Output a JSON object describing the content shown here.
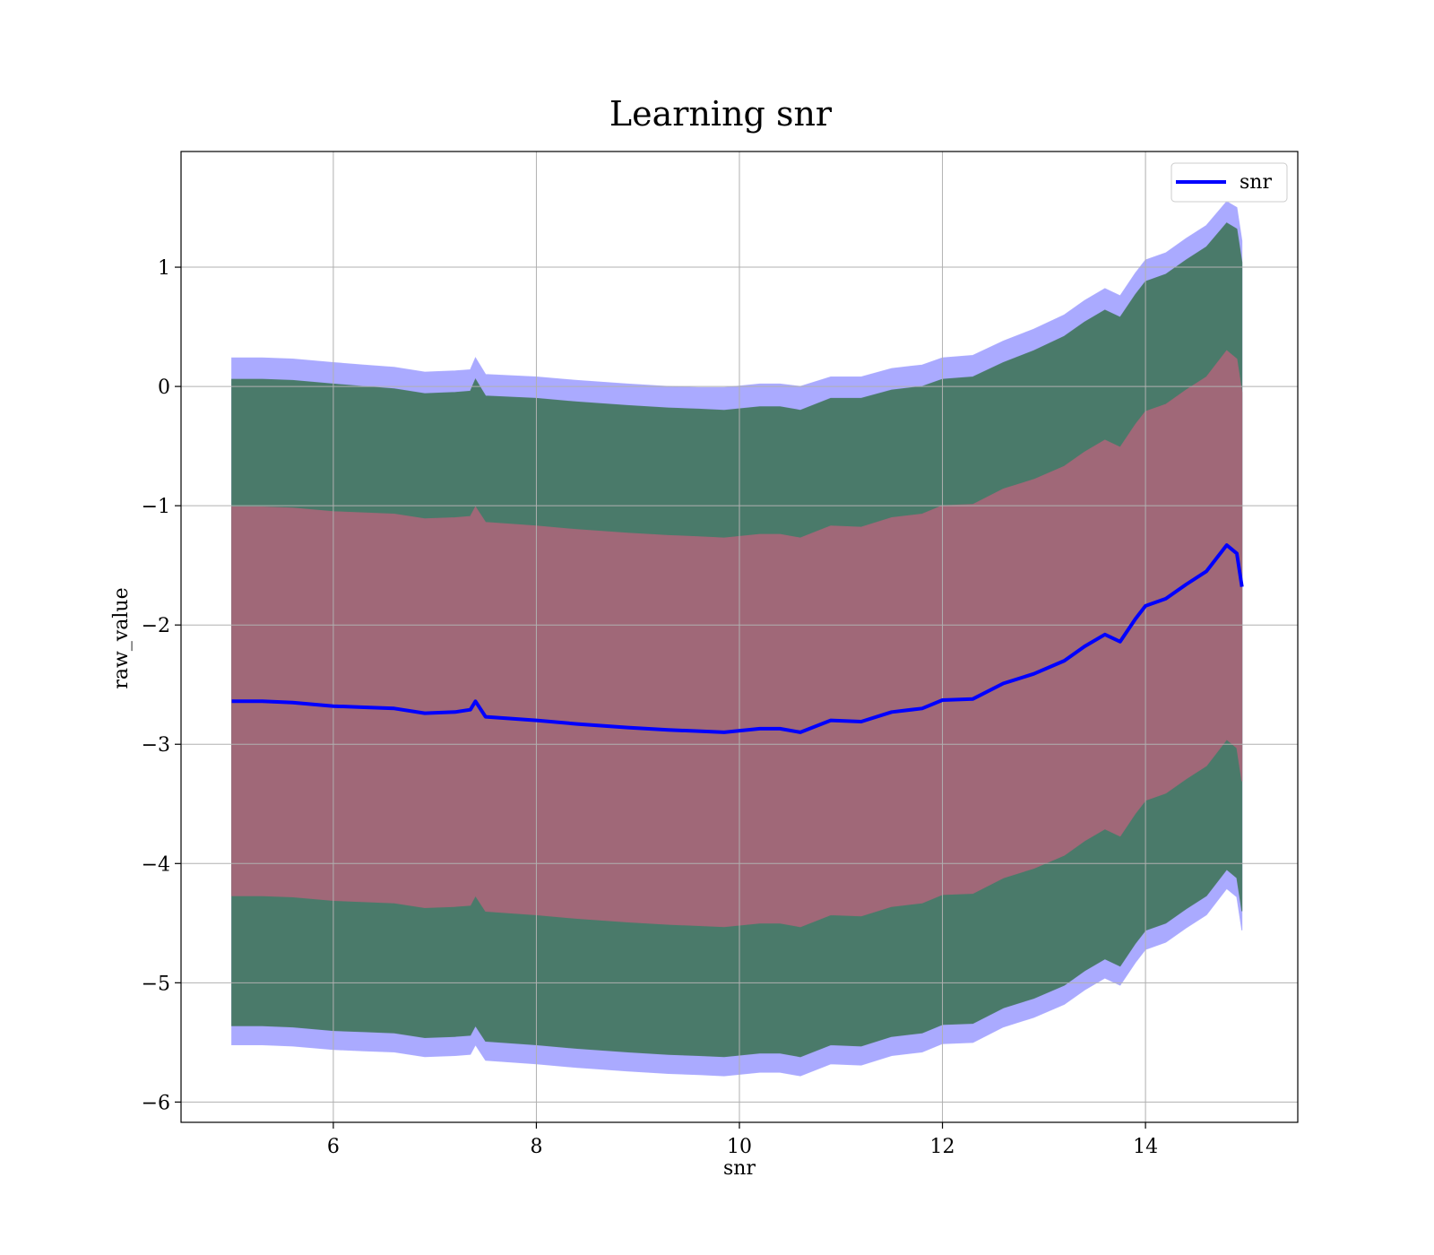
{
  "chart_data": {
    "type": "line",
    "title": "Learning snr",
    "xlabel": "snr",
    "ylabel": "raw_value",
    "xlim": [
      4.5,
      15.5
    ],
    "ylim": [
      -6.17,
      1.97
    ],
    "xticks": [
      6,
      8,
      10,
      12,
      14
    ],
    "yticks": [
      -6,
      -5,
      -4,
      -3,
      -2,
      -1,
      0,
      1
    ],
    "xtick_labels": [
      "6",
      "8",
      "10",
      "12",
      "14"
    ],
    "ytick_labels": [
      "−6",
      "−5",
      "−4",
      "−3",
      "−2",
      "−1",
      "0",
      "1"
    ],
    "grid": true,
    "legend_position": "upper right",
    "series": [
      {
        "name": "snr",
        "color": "#0000ff",
        "x": [
          5.0,
          5.3,
          5.6,
          6.0,
          6.3,
          6.6,
          6.9,
          7.2,
          7.35,
          7.4,
          7.5,
          8.0,
          8.4,
          8.9,
          9.3,
          9.6,
          9.85,
          10.2,
          10.4,
          10.6,
          10.9,
          11.2,
          11.5,
          11.8,
          12.0,
          12.3,
          12.6,
          12.9,
          13.2,
          13.4,
          13.6,
          13.75,
          13.9,
          14.0,
          14.2,
          14.4,
          14.6,
          14.8,
          14.9,
          14.95
        ],
        "y": [
          -2.64,
          -2.64,
          -2.65,
          -2.68,
          -2.69,
          -2.7,
          -2.74,
          -2.73,
          -2.71,
          -2.64,
          -2.77,
          -2.8,
          -2.83,
          -2.86,
          -2.88,
          -2.89,
          -2.9,
          -2.87,
          -2.87,
          -2.9,
          -2.8,
          -2.81,
          -2.73,
          -2.7,
          -2.63,
          -2.62,
          -2.49,
          -2.41,
          -2.3,
          -2.18,
          -2.08,
          -2.14,
          -1.95,
          -1.84,
          -1.78,
          -1.66,
          -1.55,
          -1.33,
          -1.4,
          -1.68
        ]
      }
    ],
    "bands": [
      {
        "color": "#aaaaff",
        "x": [
          5.0,
          5.3,
          5.6,
          6.0,
          6.3,
          6.6,
          6.9,
          7.2,
          7.35,
          7.4,
          7.5,
          8.0,
          8.4,
          8.9,
          9.3,
          9.6,
          9.85,
          10.2,
          10.4,
          10.6,
          10.9,
          11.2,
          11.5,
          11.8,
          12.0,
          12.3,
          12.6,
          12.9,
          13.2,
          13.4,
          13.6,
          13.75,
          13.9,
          14.0,
          14.2,
          14.4,
          14.6,
          14.8,
          14.9,
          14.95
        ],
        "upper": [
          0.24,
          0.24,
          0.23,
          0.2,
          0.18,
          0.16,
          0.12,
          0.13,
          0.14,
          0.24,
          0.1,
          0.08,
          0.05,
          0.02,
          0.0,
          -0.01,
          -0.01,
          0.02,
          0.02,
          0.0,
          0.08,
          0.08,
          0.15,
          0.18,
          0.24,
          0.26,
          0.38,
          0.48,
          0.6,
          0.72,
          0.82,
          0.76,
          0.95,
          1.06,
          1.12,
          1.24,
          1.35,
          1.55,
          1.5,
          1.22
        ],
        "lower": [
          -5.52,
          -5.52,
          -5.53,
          -5.56,
          -5.57,
          -5.58,
          -5.62,
          -5.61,
          -5.6,
          -5.52,
          -5.65,
          -5.68,
          -5.71,
          -5.74,
          -5.76,
          -5.77,
          -5.78,
          -5.75,
          -5.75,
          -5.78,
          -5.68,
          -5.69,
          -5.61,
          -5.58,
          -5.51,
          -5.5,
          -5.37,
          -5.29,
          -5.18,
          -5.06,
          -4.96,
          -5.02,
          -4.83,
          -4.72,
          -4.66,
          -4.54,
          -4.43,
          -4.21,
          -4.28,
          -4.56
        ]
      },
      {
        "color": "#4a7a6a",
        "x": [
          5.0,
          5.3,
          5.6,
          6.0,
          6.3,
          6.6,
          6.9,
          7.2,
          7.35,
          7.4,
          7.5,
          8.0,
          8.4,
          8.9,
          9.3,
          9.6,
          9.85,
          10.2,
          10.4,
          10.6,
          10.9,
          11.2,
          11.5,
          11.8,
          12.0,
          12.3,
          12.6,
          12.9,
          13.2,
          13.4,
          13.6,
          13.75,
          13.9,
          14.0,
          14.2,
          14.4,
          14.6,
          14.8,
          14.9,
          14.95
        ],
        "upper": [
          0.06,
          0.06,
          0.05,
          0.02,
          0.0,
          -0.02,
          -0.06,
          -0.05,
          -0.04,
          0.06,
          -0.08,
          -0.1,
          -0.13,
          -0.16,
          -0.18,
          -0.19,
          -0.2,
          -0.17,
          -0.17,
          -0.2,
          -0.1,
          -0.1,
          -0.03,
          0.0,
          0.06,
          0.08,
          0.2,
          0.3,
          0.42,
          0.54,
          0.64,
          0.58,
          0.77,
          0.88,
          0.94,
          1.06,
          1.17,
          1.37,
          1.32,
          1.04
        ],
        "lower": [
          -5.36,
          -5.36,
          -5.37,
          -5.4,
          -5.41,
          -5.42,
          -5.46,
          -5.45,
          -5.44,
          -5.36,
          -5.49,
          -5.52,
          -5.55,
          -5.58,
          -5.6,
          -5.61,
          -5.62,
          -5.59,
          -5.59,
          -5.62,
          -5.52,
          -5.53,
          -5.45,
          -5.42,
          -5.35,
          -5.34,
          -5.21,
          -5.13,
          -5.02,
          -4.9,
          -4.8,
          -4.86,
          -4.67,
          -4.56,
          -4.5,
          -4.38,
          -4.27,
          -4.05,
          -4.12,
          -4.4
        ]
      },
      {
        "color": "#a06878",
        "x": [
          5.0,
          5.3,
          5.6,
          6.0,
          6.3,
          6.6,
          6.9,
          7.2,
          7.35,
          7.4,
          7.5,
          8.0,
          8.4,
          8.9,
          9.3,
          9.6,
          9.85,
          10.2,
          10.4,
          10.6,
          10.9,
          11.2,
          11.5,
          11.8,
          12.0,
          12.3,
          12.6,
          12.9,
          13.2,
          13.4,
          13.6,
          13.75,
          13.9,
          14.0,
          14.2,
          14.4,
          14.6,
          14.8,
          14.9,
          14.95
        ],
        "upper": [
          -1.01,
          -1.01,
          -1.02,
          -1.05,
          -1.06,
          -1.07,
          -1.11,
          -1.1,
          -1.09,
          -1.01,
          -1.14,
          -1.17,
          -1.2,
          -1.23,
          -1.25,
          -1.26,
          -1.27,
          -1.24,
          -1.24,
          -1.27,
          -1.17,
          -1.18,
          -1.1,
          -1.07,
          -1.0,
          -0.99,
          -0.86,
          -0.78,
          -0.67,
          -0.55,
          -0.45,
          -0.51,
          -0.32,
          -0.21,
          -0.15,
          -0.03,
          0.08,
          0.3,
          0.23,
          -0.05
        ],
        "lower": [
          -4.27,
          -4.27,
          -4.28,
          -4.31,
          -4.32,
          -4.33,
          -4.37,
          -4.36,
          -4.35,
          -4.27,
          -4.4,
          -4.43,
          -4.46,
          -4.49,
          -4.51,
          -4.52,
          -4.53,
          -4.5,
          -4.5,
          -4.53,
          -4.43,
          -4.44,
          -4.36,
          -4.33,
          -4.26,
          -4.25,
          -4.12,
          -4.04,
          -3.93,
          -3.81,
          -3.71,
          -3.77,
          -3.58,
          -3.47,
          -3.41,
          -3.29,
          -3.18,
          -2.96,
          -3.03,
          -3.31
        ]
      }
    ]
  }
}
